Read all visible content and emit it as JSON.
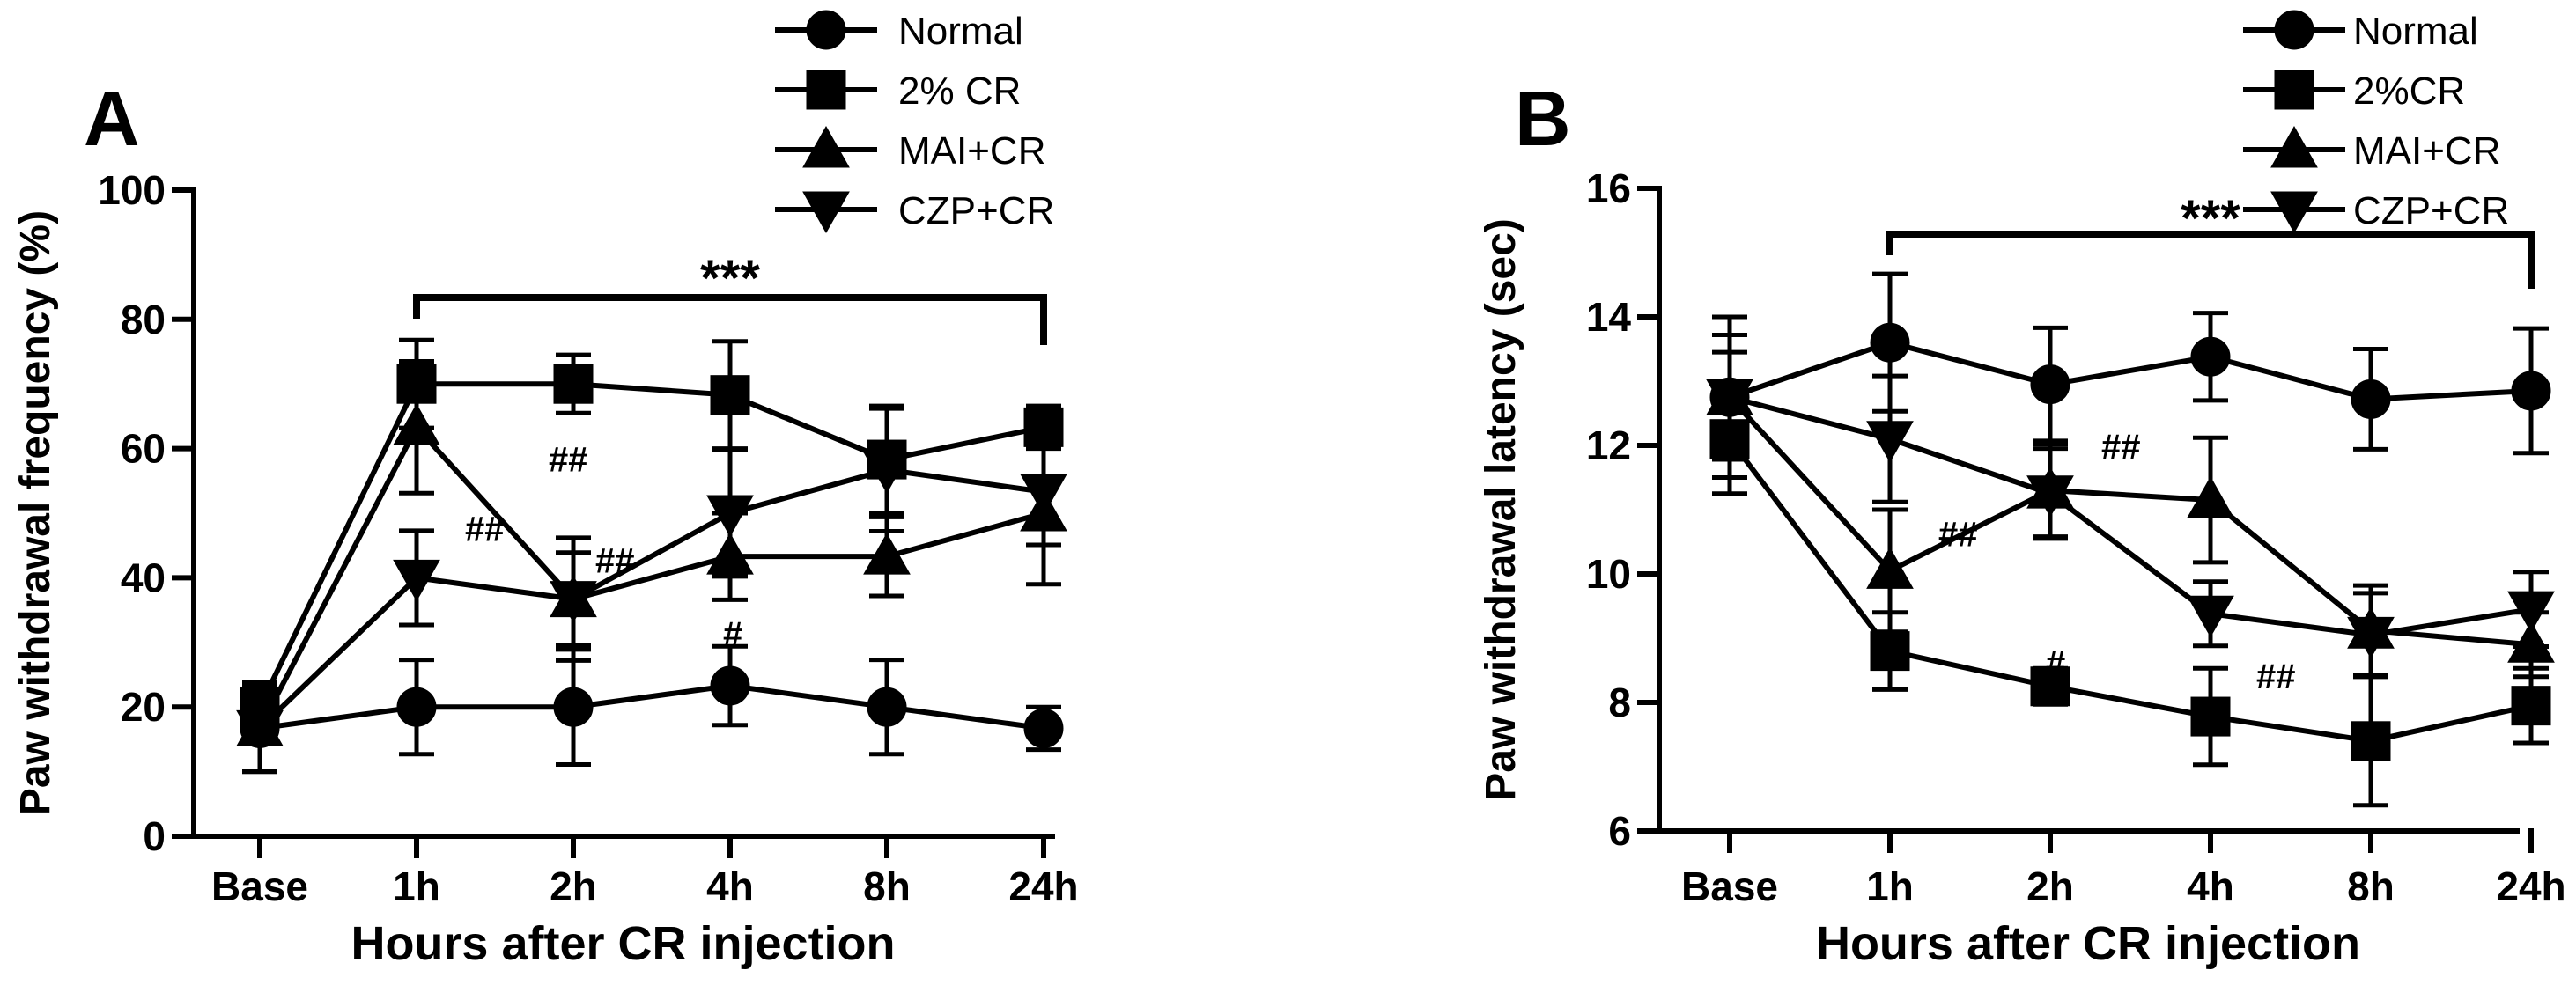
{
  "chart_data": [
    {
      "panel_label": "A",
      "type": "line",
      "xlabel": "Hours after CR injection",
      "ylabel": "Paw withdrawal frequency (%)",
      "ylim": [
        0,
        100
      ],
      "yticks": [
        "0",
        "20",
        "40",
        "60",
        "80",
        "100"
      ],
      "categories": [
        "Base",
        "1h",
        "2h",
        "4h",
        "8h",
        "24h"
      ],
      "series": [
        {
          "name": "Normal",
          "marker": "circle",
          "values": [
            16.7,
            20,
            20,
            23.3,
            20,
            16.7
          ],
          "errors": [
            6.7,
            7.3,
            8.9,
            6.1,
            7.3,
            3.3
          ]
        },
        {
          "name": "2% CR",
          "marker": "square",
          "values": [
            20,
            70,
            70,
            68.3,
            58.3,
            63.3
          ],
          "errors": [
            3.8,
            6.8,
            4.5,
            8.3,
            8.3,
            3.3
          ]
        },
        {
          "name": "MAI+CR",
          "marker": "triangle-up",
          "values": [
            16.7,
            63.3,
            36.7,
            43.3,
            43.3,
            50
          ],
          "errors": [
            6.7,
            10.2,
            9.5,
            6.7,
            6.1,
            11
          ]
        },
        {
          "name": "CZP+CR",
          "marker": "triangle-down",
          "values": [
            16.7,
            40,
            36.7,
            50,
            56.7,
            53.3
          ],
          "errors": [
            6.7,
            7.3,
            7.2,
            9.8,
            9.5,
            8.2
          ]
        }
      ],
      "annotations": [
        {
          "text": "***",
          "category": "1h-24h",
          "note": "bracket"
        },
        {
          "text": "##",
          "category": "1h"
        },
        {
          "text": "##",
          "category": "2h"
        },
        {
          "text": "##",
          "category": "2h"
        },
        {
          "text": "#",
          "category": "4h"
        }
      ]
    },
    {
      "panel_label": "B",
      "type": "line",
      "xlabel": "Hours after CR injection",
      "ylabel": "Paw withdrawal latency (sec)",
      "ylim": [
        6,
        16
      ],
      "yticks": [
        "6",
        "8",
        "10",
        "12",
        "14",
        "16"
      ],
      "categories": [
        "Base",
        "1h",
        "2h",
        "4h",
        "8h",
        "24h"
      ],
      "series": [
        {
          "name": "Normal",
          "marker": "circle",
          "values": [
            12.75,
            13.6,
            12.95,
            13.38,
            12.72,
            12.85
          ],
          "errors": [
            1.25,
            1.07,
            0.88,
            0.68,
            0.78,
            0.97
          ]
        },
        {
          "name": "2%CR",
          "marker": "square",
          "values": [
            12.1,
            8.8,
            8.25,
            7.78,
            7.4,
            7.95
          ],
          "errors": [
            0.85,
            0.6,
            0.28,
            0.75,
            1.0,
            0.58
          ]
        },
        {
          "name": "MAI+CR",
          "marker": "triangle-up",
          "values": [
            12.75,
            10.05,
            11.3,
            11.15,
            9.12,
            8.9
          ],
          "errors": [
            0.97,
            0.95,
            0.72,
            0.97,
            0.7,
            0.5
          ]
        },
        {
          "name": "CZP+CR",
          "marker": "triangle-down",
          "values": [
            12.75,
            12.1,
            11.25,
            9.38,
            9.05,
            9.45
          ],
          "errors": [
            0.7,
            0.98,
            0.7,
            0.5,
            0.65,
            0.58
          ]
        }
      ],
      "annotations": [
        {
          "text": "***",
          "category": "1h-24h",
          "note": "bracket"
        },
        {
          "text": "##",
          "category": "1h"
        },
        {
          "text": "##",
          "category": "2h"
        },
        {
          "text": "#",
          "category": "2h"
        },
        {
          "text": "##",
          "category": "4h"
        }
      ]
    }
  ]
}
